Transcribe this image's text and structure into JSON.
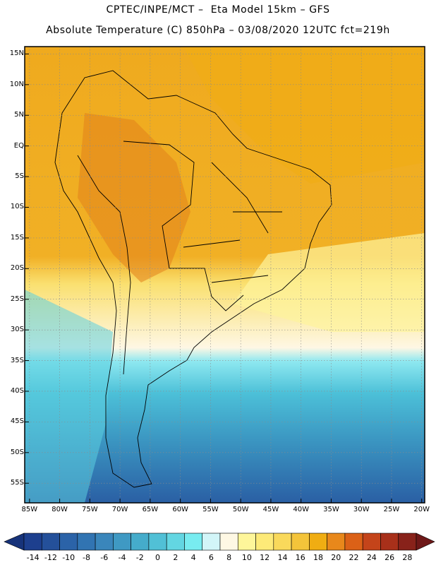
{
  "header": {
    "line1": "CPTEC/INPE/MCT –  Eta Model 15km – GFS",
    "line2": "Absolute Temperature (C) 850hPa – 03/08/2020 12UTC fct=219h"
  },
  "map": {
    "region": "South America",
    "lat_labels": [
      "15N",
      "10N",
      "5N",
      "EQ",
      "5S",
      "10S",
      "15S",
      "20S",
      "25S",
      "30S",
      "35S",
      "40S",
      "45S",
      "50S",
      "55S"
    ],
    "lon_labels": [
      "85W",
      "80W",
      "75W",
      "70W",
      "65W",
      "60W",
      "55W",
      "50W",
      "45W",
      "40W",
      "35W",
      "30W",
      "25W",
      "20W"
    ]
  },
  "colorbar": {
    "ticks": [
      "-14",
      "-12",
      "-10",
      "-8",
      "-6",
      "-4",
      "-2",
      "0",
      "2",
      "4",
      "6",
      "8",
      "10",
      "12",
      "14",
      "16",
      "18",
      "20",
      "22",
      "24",
      "26",
      "28"
    ],
    "colors": [
      "#1d3f8e",
      "#24509a",
      "#2b63a8",
      "#3174b2",
      "#3a86bb",
      "#3f99c3",
      "#45accb",
      "#51c0d6",
      "#63d6e2",
      "#78ecf0",
      "#d2f5f8",
      "#fef8e4",
      "#fef69a",
      "#fdea78",
      "#f9d95b",
      "#f4c43a",
      "#f0ad12",
      "#e8881b",
      "#db6117",
      "#c4441a",
      "#a8301a",
      "#88221a"
    ],
    "under_color": "#17337a",
    "over_color": "#6e1818"
  }
}
